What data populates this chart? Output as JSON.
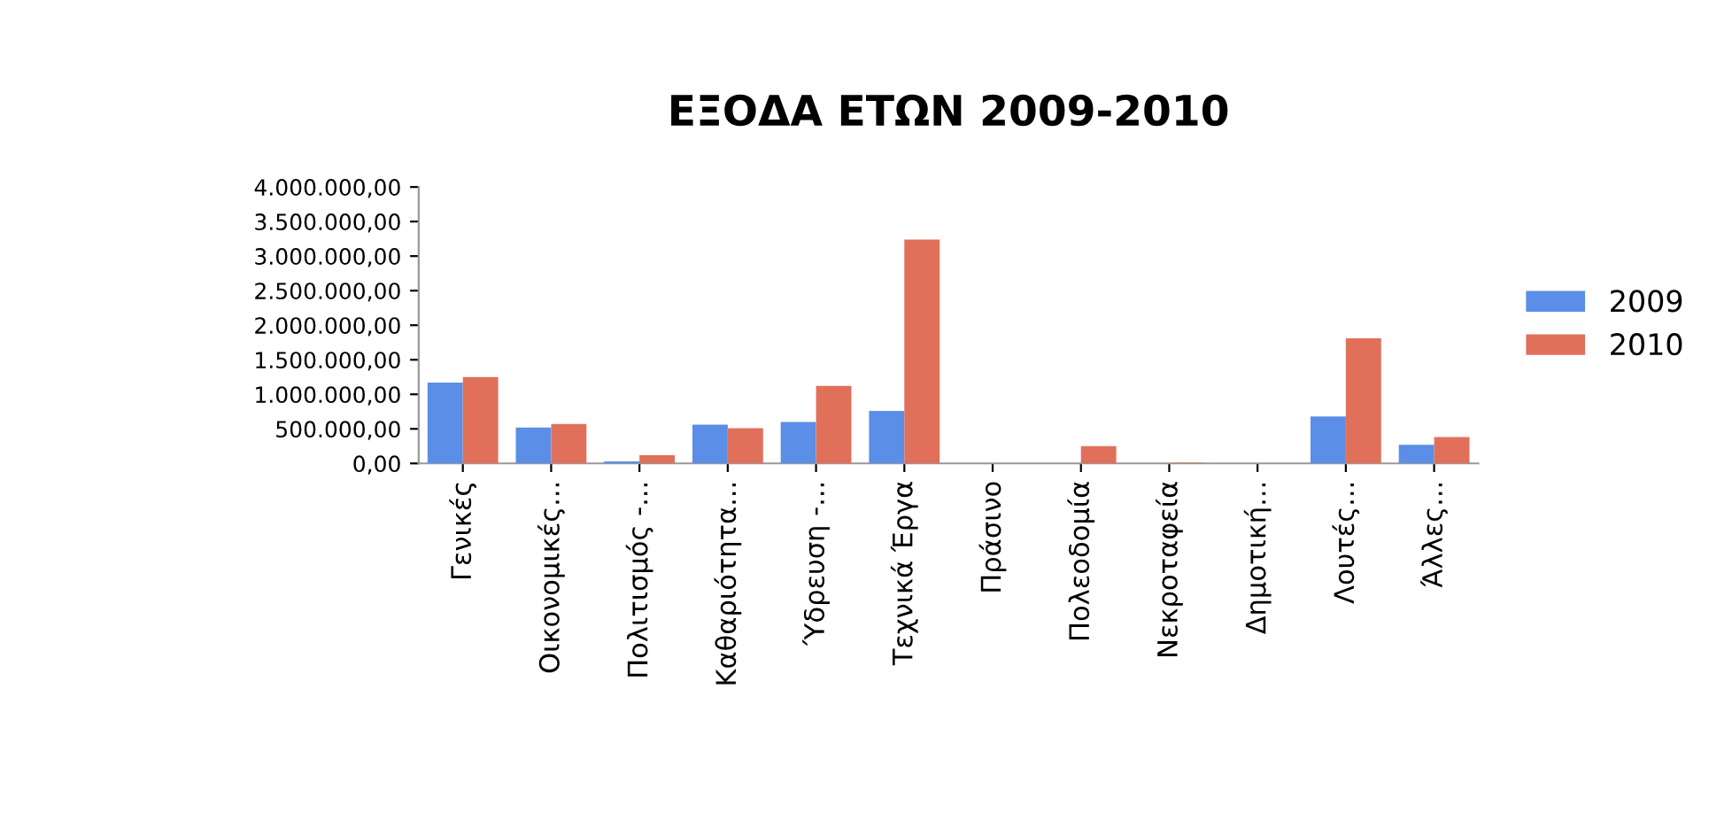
{
  "chart_data": {
    "type": "bar",
    "title": "ΕΞΟΔΑ ΕΤΩΝ 2009-2010",
    "categories": [
      "Γενικές",
      "Οικονομικές...",
      "Πολιτισμός -...",
      "Καθαριότητα...",
      "Ύδρευση -...",
      "Τεχνικά Έργα",
      "Πράσινο",
      "Πολεοδομία",
      "Νεκροταφεία",
      "Δημοτική...",
      "Λουτές...",
      "Άλλες..."
    ],
    "series": [
      {
        "name": "2009",
        "color": "#5b8ee6",
        "values": [
          1170000,
          520000,
          30000,
          560000,
          600000,
          760000,
          0,
          0,
          0,
          0,
          680000,
          270000
        ]
      },
      {
        "name": "2010",
        "color": "#e0705a",
        "values": [
          1250000,
          570000,
          120000,
          510000,
          1120000,
          3240000,
          0,
          250000,
          10000,
          0,
          1810000,
          380000
        ]
      }
    ],
    "ylim": [
      0,
      4000000
    ],
    "yticks": [
      {
        "value": 0,
        "label": "0,00"
      },
      {
        "value": 500000,
        "label": "500.000,00"
      },
      {
        "value": 1000000,
        "label": "1.000.000,00"
      },
      {
        "value": 1500000,
        "label": "1.500.000,00"
      },
      {
        "value": 2000000,
        "label": "2.000.000,00"
      },
      {
        "value": 2500000,
        "label": "2.500.000,00"
      },
      {
        "value": 3000000,
        "label": "3.000.000,00"
      },
      {
        "value": 3500000,
        "label": "3.500.000,00"
      },
      {
        "value": 4000000,
        "label": "4.000.000,00"
      }
    ],
    "grid": false,
    "legend": "right"
  }
}
